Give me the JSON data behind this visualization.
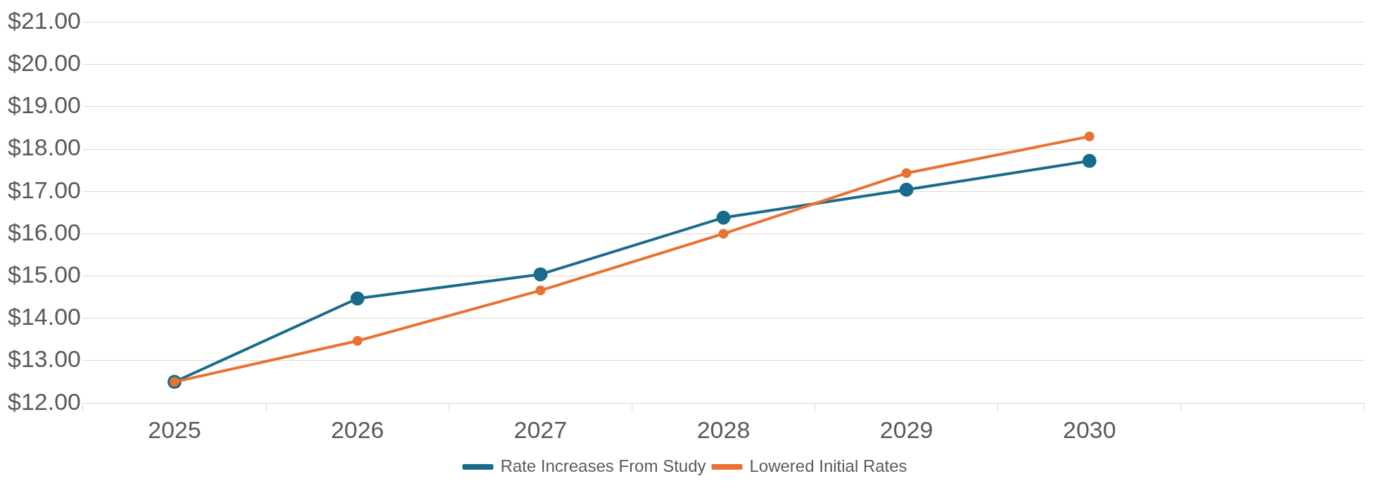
{
  "chart_data": {
    "type": "line",
    "categories": [
      "2025",
      "2026",
      "2027",
      "2028",
      "2029",
      "2030",
      null
    ],
    "series": [
      {
        "name": "Rate Increases From Study",
        "color": "#196b8c",
        "values": [
          12.5,
          14.47,
          15.04,
          16.38,
          17.04,
          17.72,
          null
        ]
      },
      {
        "name": "Lowered Initial Rates",
        "color": "#e97132",
        "values": [
          12.5,
          13.47,
          14.66,
          16.0,
          17.43,
          18.3,
          null
        ]
      }
    ],
    "ylim": [
      12,
      21
    ],
    "yticks": [
      {
        "value": 12,
        "label": "$12.00"
      },
      {
        "value": 13,
        "label": "$13.00"
      },
      {
        "value": 14,
        "label": "$14.00"
      },
      {
        "value": 15,
        "label": "$15.00"
      },
      {
        "value": 16,
        "label": "$16.00"
      },
      {
        "value": 17,
        "label": "$17.00"
      },
      {
        "value": 18,
        "label": "$18.00"
      },
      {
        "value": 19,
        "label": "$19.00"
      },
      {
        "value": 20,
        "label": "$20.00"
      },
      {
        "value": 21,
        "label": "$21.00"
      }
    ],
    "grid": "y",
    "legend": "bottom",
    "marker": "circle",
    "line_style": "solid"
  }
}
